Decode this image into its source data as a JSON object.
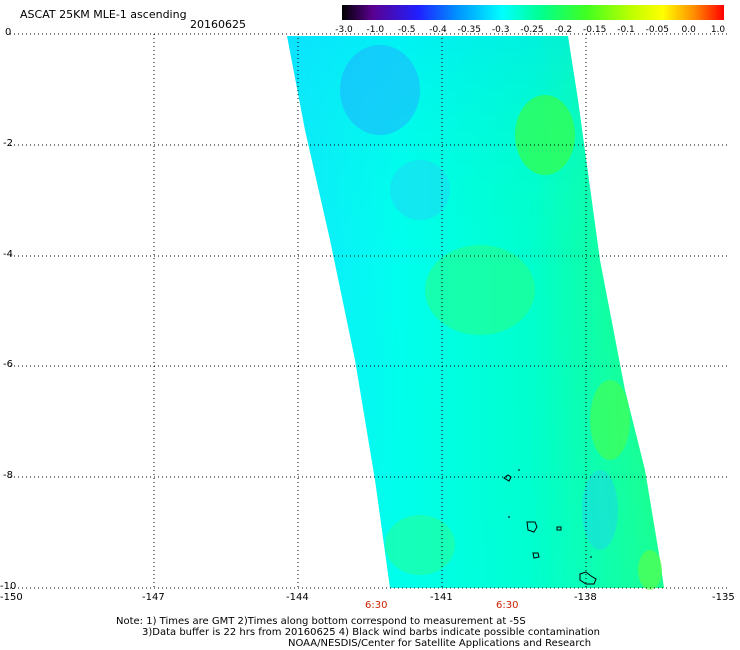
{
  "header": {
    "title": "ASCAT 25KM MLE-1 ascending",
    "date": "20160625"
  },
  "colorbar": {
    "labels": [
      "-3.0",
      "-1.0",
      "-0.5",
      "-0.4",
      "-0.35",
      "-0.3",
      "-0.25",
      "-0.2",
      "-0.15",
      "-0.1",
      "-0.05",
      "0.0",
      "1.0"
    ]
  },
  "map": {
    "x_ticks": [
      "-150",
      "-147",
      "-144",
      "-141",
      "-138",
      "-135"
    ],
    "y_ticks": [
      "0",
      "-2",
      "-4",
      "-6",
      "-8",
      "-10"
    ],
    "times": [
      "6:30",
      "6:30"
    ],
    "grid_style": "dotted"
  },
  "footer": {
    "line1": "Note: 1) Times are GMT 2)Times along bottom correspond to measurement at -5S",
    "line2": "3)Data buffer is 22 hrs from 20160625 4) Black wind barbs indicate possible contamination",
    "line3": "NOAA/NESDIS/Center for Satellite Applications and Research"
  },
  "colors": {
    "grid": "#000000",
    "time_labels": "#cc2200"
  }
}
